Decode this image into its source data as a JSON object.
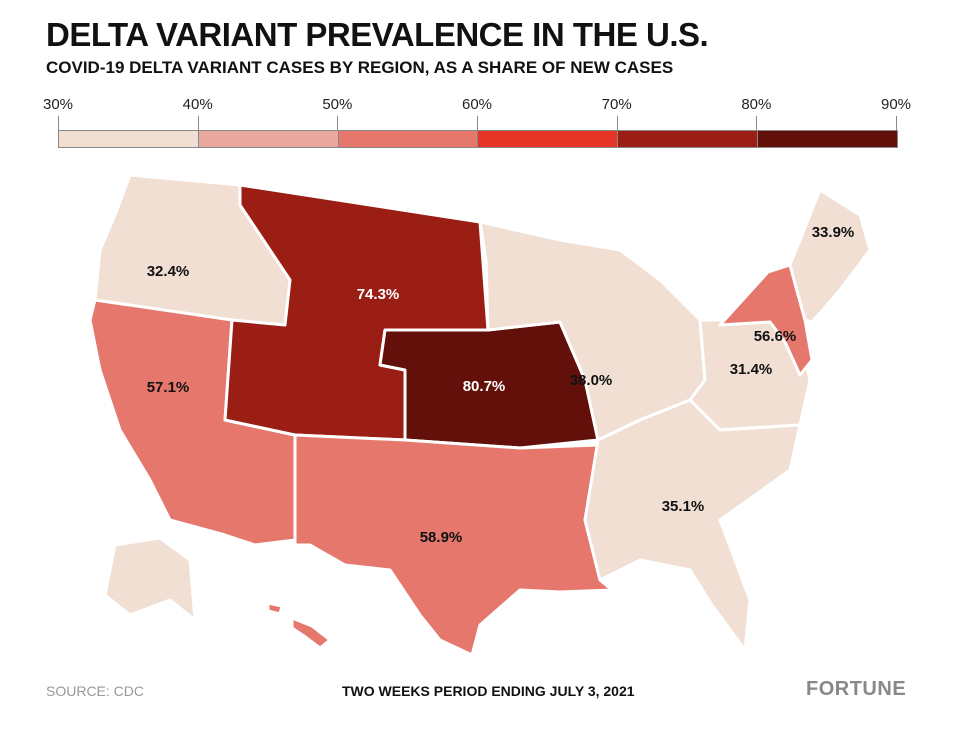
{
  "title": "DELTA VARIANT PREVALENCE IN THE U.S.",
  "subtitle": "COVID-19 DELTA VARIANT CASES BY REGION, AS A SHARE OF NEW CASES",
  "legend": {
    "ticks": [
      "30%",
      "40%",
      "50%",
      "60%",
      "70%",
      "80%",
      "90%"
    ],
    "colors": [
      "#f0dfd2",
      "#e9a99f",
      "#e5776d",
      "#e43527",
      "#9b1e14",
      "#621009"
    ]
  },
  "regions": [
    {
      "name": "Region 10 (WA, OR, ID, AK)",
      "value": "32.4%",
      "color": "#f0dfd2"
    },
    {
      "name": "Region 9 (CA, NV, AZ, HI)",
      "value": "57.1%",
      "color": "#e5776d"
    },
    {
      "name": "Region 8 (MT, ND, SD, WY, UT, CO)",
      "value": "74.3%",
      "color": "#9b1e14"
    },
    {
      "name": "Region 7 (NE, KS, IA, MO)",
      "value": "80.7%",
      "color": "#621009"
    },
    {
      "name": "Region 6 (NM, TX, OK, AR, LA)",
      "value": "58.9%",
      "color": "#e5776d"
    },
    {
      "name": "Region 5 (MN, WI, IL, MI, IN, OH)",
      "value": "38.0%",
      "color": "#f0dfd2"
    },
    {
      "name": "Region 3 (PA, WV, VA, MD, DE)",
      "value": "31.4%",
      "color": "#f0dfd2"
    },
    {
      "name": "Region 4 (KY, TN, NC, SC, GA, FL, AL, MS)",
      "value": "35.1%",
      "color": "#f0dfd2"
    },
    {
      "name": "Region 2 (NY, NJ)",
      "value": "56.6%",
      "color": "#e5776d"
    },
    {
      "name": "Region 1 (New England)",
      "value": "33.9%",
      "color": "#f0dfd2"
    }
  ],
  "footer": {
    "source": "SOURCE: CDC",
    "period": "TWO WEEKS PERIOD ENDING JULY 3, 2021",
    "brand": "FORTUNE"
  }
}
